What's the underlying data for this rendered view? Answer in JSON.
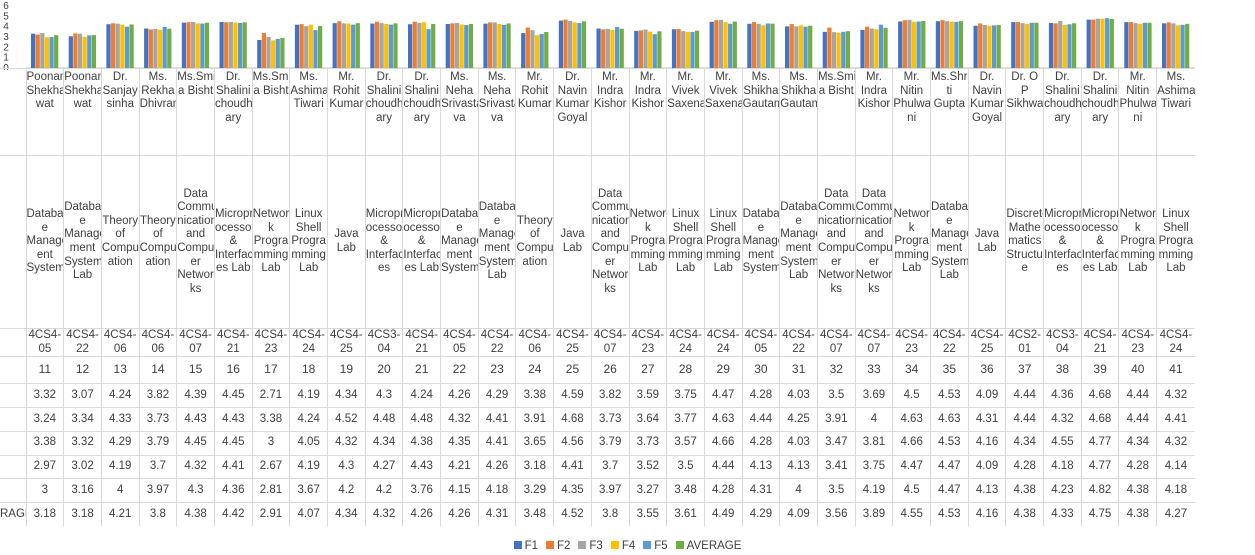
{
  "colors": {
    "F1": "#4472c4",
    "F2": "#ed7d31",
    "F3": "#a5a5a5",
    "F4": "#ffc000",
    "F5": "#5b9bd5",
    "AVERAGE": "#70ad47"
  },
  "chart_data": {
    "type": "bar",
    "title": "",
    "xlabel": "",
    "ylabel": "",
    "ylim": [
      0,
      6
    ],
    "y_ticks": [
      "6",
      "5",
      "4",
      "3",
      "2",
      "1",
      "0"
    ],
    "legend_position": "bottom",
    "grid": false,
    "categories": [
      {
        "faculty": "Poonam Shekha wat",
        "subject": "Databas e Managem ent System",
        "code": "4CS4-05",
        "index": "11"
      },
      {
        "faculty": "Poonam Shekha wat",
        "subject": "Databas e Manage ment System Lab",
        "code": "4CS4-22",
        "index": "12"
      },
      {
        "faculty": "Dr. Sanjay sinha",
        "subject": "Theory of Comput ation",
        "code": "4CS4-06",
        "index": "13"
      },
      {
        "faculty": "Ms. Rekha Dhivrani",
        "subject": "Theory of Comput ation",
        "code": "4CS4-06",
        "index": "14"
      },
      {
        "faculty": "Ms.Smit a Bisht",
        "subject": "Data Commu nication and Comput er Networ ks",
        "code": "4CS4-07",
        "index": "15"
      },
      {
        "faculty": "Dr. Shalini choudh ary",
        "subject": "Micropr ocessor & Interfac es Lab",
        "code": "4CS4-21",
        "index": "16"
      },
      {
        "faculty": "Ms.Smit a Bisht",
        "subject": "Networ k Progra mming Lab",
        "code": "4CS4-23",
        "index": "17"
      },
      {
        "faculty": "Ms. Ashima Tiwari",
        "subject": "Linux Shell Progra mming Lab",
        "code": "4CS4-24",
        "index": "18"
      },
      {
        "faculty": "Mr. Rohit Kumar",
        "subject": "Java Lab",
        "code": "4CS4-25",
        "index": "19"
      },
      {
        "faculty": "Dr. Shalini choudh ary",
        "subject": "Micropr ocessor & Interfac es",
        "code": "4CS3-04",
        "index": "20"
      },
      {
        "faculty": "Dr. Shalini choudh ary",
        "subject": "Micropr ocessor & Interfac es Lab",
        "code": "4CS4-21",
        "index": "21"
      },
      {
        "faculty": "Ms. Neha Srivasta va",
        "subject": "Databas e Manage ment System",
        "code": "4CS4-05",
        "index": "22"
      },
      {
        "faculty": "Ms. Neha Srivasta va",
        "subject": "Databas e Manage ment System Lab",
        "code": "4CS4-22",
        "index": "23"
      },
      {
        "faculty": "Mr. Rohit Kumar",
        "subject": "Theory of Comput ation",
        "code": "4CS4-06",
        "index": "24"
      },
      {
        "faculty": "Dr. Navin Kumar Goyal",
        "subject": "Java Lab",
        "code": "4CS4-25",
        "index": "25"
      },
      {
        "faculty": "Mr. Indra Kishor",
        "subject": "Data Commu nication and Comput er Networ ks",
        "code": "4CS4-07",
        "index": "26"
      },
      {
        "faculty": "Mr. Indra Kishor",
        "subject": "Networ k Progra mming Lab",
        "code": "4CS4-23",
        "index": "27"
      },
      {
        "faculty": "Mr. Vivek Saxena",
        "subject": "Linux Shell Progra mming Lab",
        "code": "4CS4-24",
        "index": "28"
      },
      {
        "faculty": "Mr. Vivek Saxena",
        "subject": "Linux Shell Progra mming Lab",
        "code": "4CS4-24",
        "index": "29"
      },
      {
        "faculty": "Ms. Shikha Gautam",
        "subject": "Databas e Manage ment System",
        "code": "4CS4-05",
        "index": "30"
      },
      {
        "faculty": "Ms. Shikha Gautam",
        "subject": "Databas e Manage ment System Lab",
        "code": "4CS4-22",
        "index": "31"
      },
      {
        "faculty": "Ms.Smit a Bisht",
        "subject": "Data Commu nication and Comput er Networ ks",
        "code": "4CS4-07",
        "index": "32"
      },
      {
        "faculty": "Mr. Indra Kishor",
        "subject": "Data Commu nication and Comput er Networ ks",
        "code": "4CS4-07",
        "index": "33"
      },
      {
        "faculty": "Mr. Nitin Phulwa ni",
        "subject": "Networ k Progra mming Lab",
        "code": "4CS4-23",
        "index": "34"
      },
      {
        "faculty": "Ms.Shru ti Gupta",
        "subject": "Databas e Manage ment System Lab",
        "code": "4CS4-22",
        "index": "35"
      },
      {
        "faculty": "Dr. Navin Kumar Goyal",
        "subject": "Java Lab",
        "code": "4CS4-25",
        "index": "36"
      },
      {
        "faculty": "Dr. O P Sikhwal",
        "subject": "Discrete Mathe matics Structur e",
        "code": "4CS2-01",
        "index": "37"
      },
      {
        "faculty": "Dr. Shalini choudh ary",
        "subject": "Micropr ocessor & Interfac es",
        "code": "4CS3-04",
        "index": "38"
      },
      {
        "faculty": "Dr. Shalini choudh ary",
        "subject": "Micropr ocessor & Interfac es Lab",
        "code": "4CS4-21",
        "index": "39"
      },
      {
        "faculty": "Mr. Nitin Phulwa ni",
        "subject": "Networ k Progra mming Lab",
        "code": "4CS4-23",
        "index": "40"
      },
      {
        "faculty": "Ms. Ashima Tiwari",
        "subject": "Linux Shell Progra mming Lab",
        "code": "4CS4-24",
        "index": "41"
      }
    ],
    "series": [
      {
        "name": "F1",
        "label": "",
        "values": [
          3.32,
          3.07,
          4.24,
          3.82,
          4.39,
          4.45,
          2.71,
          4.19,
          4.34,
          4.3,
          4.24,
          4.26,
          4.29,
          3.38,
          4.59,
          3.82,
          3.59,
          3.75,
          4.47,
          4.28,
          4.03,
          3.5,
          3.69,
          4.5,
          4.53,
          4.09,
          4.44,
          4.36,
          4.68,
          4.44,
          4.32
        ]
      },
      {
        "name": "F2",
        "label": "",
        "values": [
          3.24,
          3.34,
          4.33,
          3.73,
          4.43,
          4.43,
          3.38,
          4.24,
          4.52,
          4.48,
          4.48,
          4.32,
          4.41,
          3.91,
          4.68,
          3.73,
          3.64,
          3.77,
          4.63,
          4.44,
          4.25,
          3.91,
          4,
          4.63,
          4.63,
          4.31,
          4.44,
          4.32,
          4.68,
          4.44,
          4.41
        ]
      },
      {
        "name": "F3",
        "label": "",
        "values": [
          3.38,
          3.32,
          4.29,
          3.79,
          4.45,
          4.45,
          3,
          4.05,
          4.32,
          4.34,
          4.38,
          4.35,
          4.41,
          3.65,
          4.56,
          3.79,
          3.73,
          3.57,
          4.66,
          4.28,
          4.03,
          3.47,
          3.81,
          4.66,
          4.53,
          4.16,
          4.34,
          4.55,
          4.77,
          4.34,
          4.32
        ]
      },
      {
        "name": "F4",
        "label": "",
        "values": [
          2.97,
          3.02,
          4.19,
          3.7,
          4.32,
          4.41,
          2.67,
          4.19,
          4.3,
          4.27,
          4.43,
          4.21,
          4.26,
          3.18,
          4.41,
          3.7,
          3.52,
          3.5,
          4.44,
          4.13,
          4.13,
          3.41,
          3.75,
          4.47,
          4.47,
          4.09,
          4.28,
          4.18,
          4.77,
          4.28,
          4.14
        ]
      },
      {
        "name": "F5",
        "label": "",
        "values": [
          3,
          3.16,
          4,
          3.97,
          4.3,
          4.36,
          2.81,
          3.67,
          4.2,
          4.2,
          3.76,
          4.15,
          4.18,
          3.29,
          4.35,
          3.97,
          3.27,
          3.48,
          4.28,
          4.31,
          4,
          3.5,
          4.19,
          4.5,
          4.47,
          4.13,
          4.38,
          4.23,
          4.82,
          4.38,
          4.18
        ]
      },
      {
        "name": "AVERAGE",
        "label": "RAGE",
        "values": [
          3.18,
          3.18,
          4.21,
          3.8,
          4.38,
          4.42,
          2.91,
          4.07,
          4.34,
          4.32,
          4.26,
          4.26,
          4.31,
          3.48,
          4.52,
          3.8,
          3.55,
          3.61,
          4.49,
          4.29,
          4.09,
          3.56,
          3.89,
          4.55,
          4.53,
          4.16,
          4.38,
          4.33,
          4.75,
          4.38,
          4.27
        ]
      }
    ]
  }
}
